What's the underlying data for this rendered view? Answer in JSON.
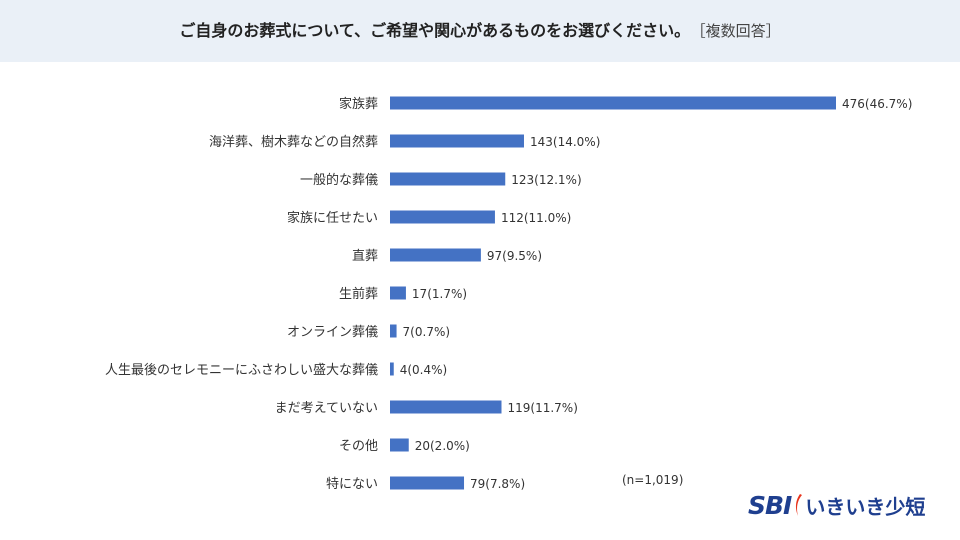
{
  "header": {
    "title": "ご自身のお葬式について、ご希望や関心があるものをお選びください。",
    "note": "［複数回答］"
  },
  "chart_data": {
    "type": "bar",
    "orientation": "horizontal",
    "categories": [
      "家族葬",
      "海洋葬、樹木葬などの自然葬",
      "一般的な葬儀",
      "家族に任せたい",
      "直葬",
      "生前葬",
      "オンライン葬儀",
      "人生最後のセレモニーにふさわしい盛大な葬儀",
      "まだ考えていない",
      "その他",
      "特にない"
    ],
    "values": [
      476,
      143,
      123,
      112,
      97,
      17,
      7,
      4,
      119,
      20,
      79
    ],
    "percents": [
      46.7,
      14.0,
      12.1,
      11.0,
      9.5,
      1.7,
      0.7,
      0.4,
      11.7,
      2.0,
      7.8
    ],
    "data_labels": [
      "476(46.7%)",
      "143(14.0%)",
      "123(12.1%)",
      "112(11.0%)",
      "97(9.5%)",
      "17(1.7%)",
      "7(0.7%)",
      "4(0.4%)",
      "119(11.7%)",
      "20(2.0%)",
      "79(7.8%)"
    ],
    "sample_note": "(n=1,019)",
    "bar_color": "#4472c4",
    "xlim": [
      0,
      476
    ],
    "grid": false,
    "legend": "none"
  },
  "brand": {
    "logo_text": "SBI",
    "name": "いきいき少短",
    "color": "#1f3f8f"
  }
}
